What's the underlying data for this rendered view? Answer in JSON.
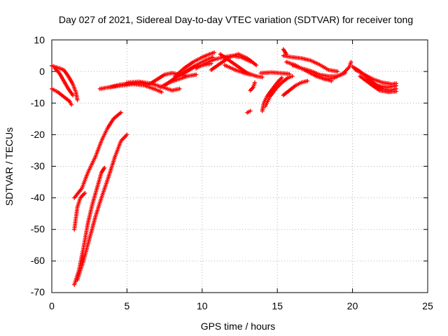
{
  "chart_data": {
    "type": "scatter",
    "title": "Day 027 of 2021, Sidereal Day-to-day VTEC variation (SDTVAR) for receiver tong",
    "xlabel": "GPS time / hours",
    "ylabel": "SDTVAR / TECUs",
    "xlim": [
      0,
      25
    ],
    "ylim": [
      -70,
      10
    ],
    "xticks": [
      "0",
      "5",
      "10",
      "15",
      "20",
      "25"
    ],
    "yticks": [
      "10",
      "0",
      "-10",
      "-20",
      "-30",
      "-40",
      "-50",
      "-60",
      "-70"
    ],
    "grid": true,
    "marker": "+",
    "color": "#ff0000",
    "series": [
      {
        "name": "arc01",
        "points": [
          [
            0.0,
            1.8
          ],
          [
            0.4,
            1.2
          ],
          [
            0.8,
            0.5
          ],
          [
            1.1,
            -1.5
          ],
          [
            1.4,
            -4.0
          ],
          [
            1.6,
            -6.5
          ],
          [
            1.7,
            -9.0
          ]
        ]
      },
      {
        "name": "arc02",
        "points": [
          [
            0.2,
            1.0
          ],
          [
            0.5,
            -0.5
          ],
          [
            0.8,
            -3.0
          ],
          [
            1.1,
            -5.5
          ],
          [
            1.4,
            -7.5
          ]
        ]
      },
      {
        "name": "arc03",
        "points": [
          [
            0.0,
            -5.5
          ],
          [
            0.4,
            -6.5
          ],
          [
            0.8,
            -8.0
          ],
          [
            1.2,
            -9.5
          ],
          [
            1.3,
            -10.5
          ]
        ]
      },
      {
        "name": "arc04",
        "points": [
          [
            1.5,
            -40
          ],
          [
            2.0,
            -37
          ],
          [
            2.4,
            -32
          ],
          [
            2.9,
            -27
          ],
          [
            3.3,
            -22
          ],
          [
            3.7,
            -18
          ],
          [
            4.1,
            -15
          ],
          [
            4.6,
            -13
          ]
        ]
      },
      {
        "name": "arc05",
        "points": [
          [
            1.5,
            -50
          ],
          [
            1.7,
            -43
          ],
          [
            1.9,
            -40
          ],
          [
            2.2,
            -38.5
          ]
        ]
      },
      {
        "name": "arc06",
        "points": [
          [
            1.5,
            -67.5
          ],
          [
            1.8,
            -63
          ],
          [
            2.1,
            -56
          ],
          [
            2.4,
            -48
          ],
          [
            2.7,
            -42
          ],
          [
            3.0,
            -37
          ],
          [
            3.3,
            -32
          ],
          [
            3.5,
            -30.5
          ]
        ]
      },
      {
        "name": "arc07",
        "points": [
          [
            1.7,
            -66
          ],
          [
            2.1,
            -60
          ],
          [
            2.5,
            -53
          ],
          [
            2.9,
            -46
          ],
          [
            3.3,
            -40
          ],
          [
            3.8,
            -33
          ],
          [
            4.2,
            -27
          ],
          [
            4.6,
            -22
          ],
          [
            5.0,
            -20
          ]
        ]
      },
      {
        "name": "arc08",
        "points": [
          [
            3.2,
            -5.5
          ],
          [
            3.8,
            -5.0
          ],
          [
            4.5,
            -4.2
          ],
          [
            5.2,
            -3.8
          ],
          [
            6.0,
            -3.6
          ],
          [
            6.4,
            -4.2
          ]
        ]
      },
      {
        "name": "arc09",
        "points": [
          [
            3.8,
            -5.0
          ],
          [
            4.6,
            -4.5
          ],
          [
            5.4,
            -4.0
          ],
          [
            6.2,
            -4.5
          ],
          [
            6.8,
            -5.5
          ],
          [
            7.3,
            -6.5
          ]
        ]
      },
      {
        "name": "arc10",
        "points": [
          [
            5.0,
            -3.5
          ],
          [
            5.8,
            -3.2
          ],
          [
            6.6,
            -3.8
          ],
          [
            7.4,
            -5.0
          ],
          [
            8.0,
            -6.0
          ],
          [
            8.5,
            -5.5
          ]
        ]
      },
      {
        "name": "arc11",
        "points": [
          [
            6.5,
            -4.0
          ],
          [
            7.0,
            -2.5
          ],
          [
            7.5,
            -1.0
          ],
          [
            8.0,
            -0.5
          ],
          [
            8.5,
            -1.0
          ],
          [
            9.0,
            -1.5
          ]
        ]
      },
      {
        "name": "arc12",
        "points": [
          [
            7.2,
            -5.0
          ],
          [
            7.8,
            -3.5
          ],
          [
            8.4,
            -2.5
          ],
          [
            9.0,
            -1.5
          ],
          [
            9.6,
            -1.0
          ]
        ]
      },
      {
        "name": "arc13",
        "points": [
          [
            7.5,
            -4.5
          ],
          [
            8.2,
            -2.0
          ],
          [
            8.9,
            0.0
          ],
          [
            9.6,
            2.0
          ],
          [
            10.2,
            3.5
          ],
          [
            10.7,
            4.5
          ]
        ]
      },
      {
        "name": "arc14",
        "points": [
          [
            8.2,
            -1.5
          ],
          [
            8.8,
            1.0
          ],
          [
            9.4,
            3.0
          ],
          [
            10.0,
            4.5
          ],
          [
            10.5,
            5.5
          ],
          [
            10.8,
            6.0
          ]
        ]
      },
      {
        "name": "arc15",
        "points": [
          [
            8.8,
            -0.5
          ],
          [
            9.5,
            1.5
          ],
          [
            10.0,
            2.0
          ],
          [
            10.6,
            2.5
          ]
        ]
      },
      {
        "name": "arc16",
        "points": [
          [
            9.6,
            1.0
          ],
          [
            10.2,
            2.5
          ],
          [
            10.8,
            3.8
          ],
          [
            11.4,
            4.5
          ],
          [
            12.0,
            5.0
          ],
          [
            12.6,
            4.5
          ],
          [
            13.2,
            3.2
          ]
        ]
      },
      {
        "name": "arc17",
        "points": [
          [
            10.6,
            0.5
          ],
          [
            11.2,
            2.5
          ],
          [
            11.8,
            4.5
          ],
          [
            12.4,
            5.5
          ],
          [
            13.0,
            4.2
          ],
          [
            13.6,
            2.0
          ]
        ]
      },
      {
        "name": "arc18",
        "points": [
          [
            11.2,
            5.5
          ],
          [
            11.8,
            3.5
          ],
          [
            12.4,
            1.5
          ],
          [
            13.0,
            -0.5
          ],
          [
            13.6,
            -1.5
          ],
          [
            14.0,
            -1.8
          ]
        ]
      },
      {
        "name": "arc19",
        "points": [
          [
            11.5,
            2.0
          ],
          [
            12.2,
            0.5
          ],
          [
            12.8,
            -0.5
          ],
          [
            13.2,
            -1.0
          ]
        ]
      },
      {
        "name": "arc20",
        "points": [
          [
            13.0,
            -13.0
          ],
          [
            13.2,
            -12.5
          ]
        ]
      },
      {
        "name": "arc21",
        "points": [
          [
            13.2,
            -6.0
          ],
          [
            13.4,
            -5.0
          ],
          [
            13.5,
            -3.5
          ]
        ]
      },
      {
        "name": "arc22",
        "points": [
          [
            13.9,
            -0.5
          ],
          [
            14.6,
            -0.3
          ],
          [
            15.2,
            -0.5
          ],
          [
            15.8,
            -0.8
          ]
        ]
      },
      {
        "name": "arc23",
        "points": [
          [
            14.0,
            -12.5
          ],
          [
            14.1,
            -10.0
          ],
          [
            14.3,
            -8.0
          ],
          [
            14.6,
            -6.0
          ],
          [
            15.0,
            -3.5
          ],
          [
            15.3,
            -2.0
          ]
        ]
      },
      {
        "name": "arc24",
        "points": [
          [
            14.2,
            -11.0
          ],
          [
            14.5,
            -8.0
          ],
          [
            14.9,
            -5.5
          ],
          [
            15.3,
            -3.5
          ],
          [
            15.7,
            -2.0
          ],
          [
            16.0,
            -1.5
          ]
        ]
      },
      {
        "name": "arc25",
        "points": [
          [
            15.4,
            7.0
          ],
          [
            15.6,
            5.5
          ]
        ]
      },
      {
        "name": "arc26",
        "points": [
          [
            15.4,
            -7.5
          ],
          [
            15.8,
            -6.0
          ],
          [
            16.2,
            -4.5
          ],
          [
            16.6,
            -3.5
          ],
          [
            17.0,
            -3.0
          ]
        ]
      },
      {
        "name": "arc27",
        "points": [
          [
            15.4,
            5.0
          ],
          [
            16.0,
            4.5
          ],
          [
            16.6,
            4.2
          ],
          [
            17.2,
            3.5
          ],
          [
            17.8,
            2.2
          ],
          [
            18.4,
            0.5
          ],
          [
            19.0,
            0.0
          ]
        ]
      },
      {
        "name": "arc28",
        "points": [
          [
            15.6,
            3.0
          ],
          [
            16.2,
            2.0
          ],
          [
            16.8,
            0.5
          ],
          [
            17.4,
            -1.0
          ],
          [
            18.0,
            -2.0
          ],
          [
            18.6,
            -3.0
          ]
        ]
      },
      {
        "name": "arc29",
        "points": [
          [
            16.0,
            2.0
          ],
          [
            16.6,
            1.0
          ],
          [
            17.2,
            0.2
          ],
          [
            17.8,
            -1.0
          ],
          [
            18.4,
            -1.5
          ],
          [
            19.0,
            -1.5
          ],
          [
            19.5,
            -0.5
          ]
        ]
      },
      {
        "name": "arc30",
        "points": [
          [
            17.0,
            0.0
          ],
          [
            17.6,
            -1.5
          ],
          [
            18.2,
            -2.5
          ],
          [
            18.8,
            -2.0
          ],
          [
            19.4,
            -0.5
          ],
          [
            19.8,
            1.5
          ],
          [
            19.9,
            3.0
          ]
        ]
      },
      {
        "name": "arc31",
        "points": [
          [
            20.0,
            1.5
          ],
          [
            20.5,
            0.0
          ],
          [
            21.0,
            -2.0
          ],
          [
            21.5,
            -4.0
          ],
          [
            22.0,
            -5.5
          ],
          [
            22.5,
            -6.0
          ],
          [
            22.9,
            -5.5
          ]
        ]
      },
      {
        "name": "arc32",
        "points": [
          [
            20.2,
            0.5
          ],
          [
            20.8,
            -1.0
          ],
          [
            21.4,
            -2.5
          ],
          [
            22.0,
            -3.5
          ],
          [
            22.6,
            -4.0
          ],
          [
            22.9,
            -3.8
          ]
        ]
      },
      {
        "name": "arc33",
        "points": [
          [
            20.5,
            -1.5
          ],
          [
            21.2,
            -4.0
          ],
          [
            21.8,
            -6.0
          ],
          [
            22.4,
            -6.5
          ],
          [
            22.9,
            -6.3
          ]
        ]
      },
      {
        "name": "arc34",
        "points": [
          [
            21.0,
            -2.5
          ],
          [
            21.6,
            -4.5
          ],
          [
            22.3,
            -5.0
          ],
          [
            22.9,
            -4.5
          ]
        ]
      }
    ]
  }
}
